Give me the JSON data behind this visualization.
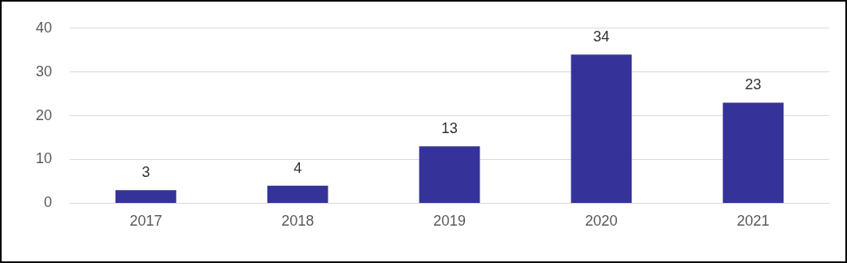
{
  "chart_data": {
    "type": "bar",
    "categories": [
      "2017",
      "2018",
      "2019",
      "2020",
      "2021"
    ],
    "values": [
      3,
      4,
      13,
      34,
      23
    ],
    "color": "#35339a",
    "ylim": [
      0,
      40
    ],
    "yticks": [
      0,
      10,
      20,
      30,
      40
    ],
    "grid": "y",
    "data_labels": true,
    "legend": false
  }
}
